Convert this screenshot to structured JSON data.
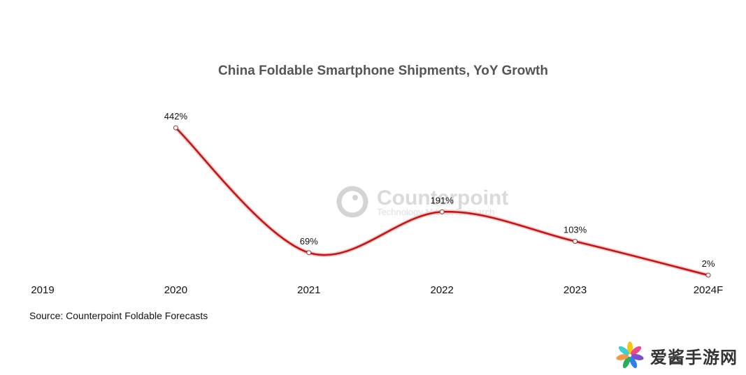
{
  "chart_data": {
    "type": "line",
    "title": "China Foldable Smartphone Shipments, YoY Growth",
    "xlabel": "",
    "ylabel": "",
    "categories": [
      "2019",
      "2020",
      "2021",
      "2022",
      "2023",
      "2024F"
    ],
    "series": [
      {
        "name": "YoY Growth",
        "values": [
          null,
          442,
          69,
          191,
          103,
          2
        ],
        "labels": [
          null,
          "442%",
          "69%",
          "191%",
          "103%",
          "2%"
        ],
        "color": "#b71c1c"
      }
    ],
    "ylim": [
      0,
      442
    ],
    "grid": false,
    "legend": "none",
    "smooth": true
  },
  "source": "Source: Counterpoint Foldable Forecasts",
  "watermark": {
    "name": "Counterpoint",
    "tagline": "Technology Market Research"
  },
  "brand_badge": {
    "text": "爱酱手游网",
    "petal_colors": [
      "#f5c518",
      "#e94b8a",
      "#7b4fc9",
      "#2f80ed",
      "#27ae60",
      "#f2994a",
      "#3ccfcf"
    ]
  }
}
